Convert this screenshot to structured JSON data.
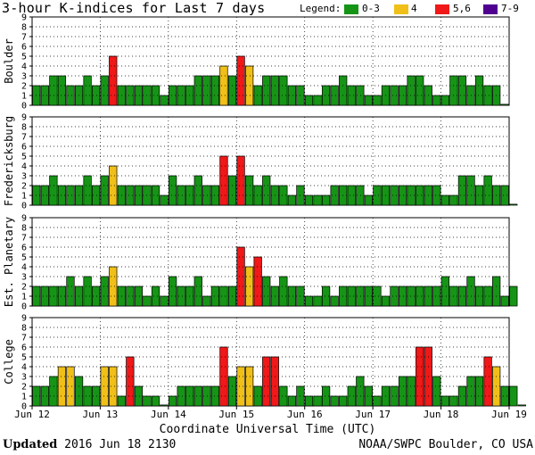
{
  "title": "3-hour K-indices for Last 7 days",
  "legend": {
    "label": "Legend:",
    "items": [
      {
        "label": "0-3",
        "color": "#169416"
      },
      {
        "label": "4",
        "color": "#f0c018"
      },
      {
        "label": "5,6",
        "color": "#f01818"
      },
      {
        "label": "7-9",
        "color": "#500090"
      }
    ]
  },
  "footer": {
    "updated_label": "Updated",
    "updated_value": "2016 Jun 18 2130",
    "source": "NOAA/SWPC Boulder, CO USA"
  },
  "chart_data": {
    "type": "bar",
    "title": "3-hour K-indices for Last 7 days",
    "xlabel": "Coordinate Universal Time (UTC)",
    "ylim": [
      0,
      9
    ],
    "yticks": [
      "0",
      "1",
      "2",
      "3",
      "4",
      "5",
      "6",
      "7",
      "8",
      "9"
    ],
    "x_tick_labels": [
      "Jun 12",
      "Jun 13",
      "Jun 14",
      "Jun 15",
      "Jun 16",
      "Jun 17",
      "Jun 18",
      "Jun 19"
    ],
    "bins_per_day": 8,
    "color_scale": [
      {
        "range": "0-3",
        "color": "#169416"
      },
      {
        "range": "4",
        "color": "#f0c018"
      },
      {
        "range": "5,6",
        "color": "#f01818"
      },
      {
        "range": "7-9",
        "color": "#500090"
      }
    ],
    "series": [
      {
        "name": "Boulder",
        "values": [
          2,
          2,
          3,
          3,
          2,
          2,
          3,
          2,
          3,
          5,
          2,
          2,
          2,
          2,
          2,
          1,
          2,
          2,
          2,
          3,
          3,
          3,
          4,
          3,
          5,
          4,
          2,
          3,
          3,
          3,
          2,
          2,
          1,
          1,
          2,
          2,
          3,
          2,
          2,
          1,
          1,
          2,
          2,
          2,
          3,
          3,
          2,
          1,
          1,
          3,
          3,
          2,
          3,
          2,
          2,
          0.1
        ]
      },
      {
        "name": "Fredericksburg",
        "values": [
          2,
          2,
          3,
          2,
          2,
          2,
          3,
          2,
          3,
          4,
          2,
          2,
          2,
          2,
          2,
          1,
          3,
          2,
          2,
          3,
          2,
          2,
          5,
          3,
          5,
          3,
          2,
          3,
          2,
          2,
          1,
          2,
          1,
          1,
          1,
          2,
          2,
          2,
          2,
          1,
          2,
          2,
          2,
          2,
          2,
          2,
          2,
          2,
          1,
          1,
          3,
          3,
          2,
          3,
          2,
          2,
          0.1
        ]
      },
      {
        "name": "Est. Planetary",
        "values": [
          2,
          2,
          2,
          2,
          3,
          2,
          3,
          2,
          3,
          4,
          2,
          2,
          2,
          1,
          2,
          1,
          3,
          2,
          2,
          3,
          1,
          2,
          2,
          2,
          6,
          4,
          5,
          3,
          2,
          3,
          2,
          2,
          1,
          1,
          2,
          1,
          2,
          2,
          2,
          2,
          2,
          1,
          2,
          2,
          2,
          2,
          2,
          2,
          3,
          2,
          2,
          3,
          2,
          2,
          3,
          1,
          2
        ]
      },
      {
        "name": "College",
        "values": [
          2,
          2,
          3,
          4,
          4,
          3,
          2,
          2,
          4,
          4,
          1,
          5,
          2,
          1,
          1,
          0.1,
          1,
          2,
          2,
          2,
          2,
          2,
          6,
          3,
          4,
          4,
          2,
          5,
          5,
          2,
          1,
          2,
          1,
          1,
          2,
          1,
          1,
          2,
          3,
          2,
          1,
          2,
          2,
          3,
          3,
          6,
          6,
          3,
          1,
          1,
          2,
          3,
          3,
          5,
          4,
          2,
          2,
          0.1
        ]
      }
    ]
  }
}
